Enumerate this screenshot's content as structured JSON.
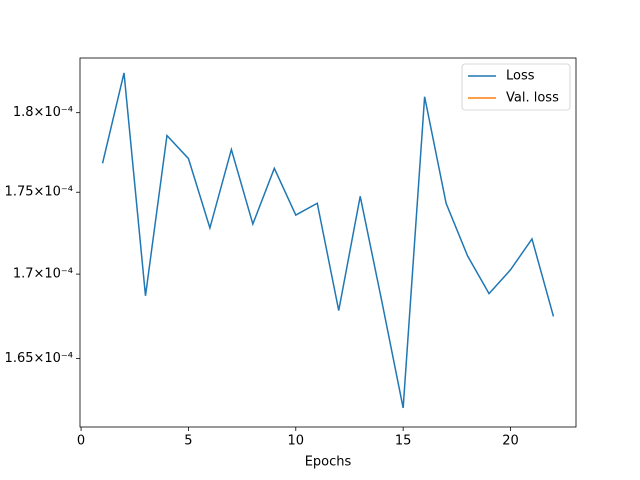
{
  "chart_data": {
    "type": "line",
    "xlabel": "Epochs",
    "x": [
      1,
      2,
      3,
      4,
      5,
      6,
      7,
      8,
      9,
      10,
      11,
      12,
      13,
      14,
      15,
      16,
      17,
      18,
      19,
      20,
      21,
      22
    ],
    "series": [
      {
        "name": "Loss",
        "color": "#1f77b4",
        "values": [
          0.0001768,
          0.00018255,
          0.0001687,
          0.00017855,
          0.0001771,
          0.0001728,
          0.00017767,
          0.00017304,
          0.00017649,
          0.00017359,
          0.00017432,
          0.00016782,
          0.00017475,
          0.00016841,
          0.00016213,
          0.00018102,
          0.00017432,
          0.0001711,
          0.00016883,
          0.00017026,
          0.00017213,
          0.00016747
        ]
      },
      {
        "name": "Val. loss",
        "color": "#ff7f0e",
        "values": [
          null,
          null,
          null,
          null,
          null,
          null,
          null,
          null,
          null,
          null,
          null,
          null,
          null,
          null,
          null,
          null,
          null,
          null,
          null,
          null,
          null,
          null
        ]
      }
    ],
    "xlim": [
      -0.05,
      23.05
    ],
    "xticks": [
      0,
      5,
      10,
      15,
      20
    ],
    "ylim": [
      0.00016104,
      0.00018352
    ],
    "ylog": true,
    "yticks": [
      {
        "value": 0.000165,
        "label": "1.65×10⁻⁴"
      },
      {
        "value": 0.00017,
        "label": "1.7×10⁻⁴"
      },
      {
        "value": 0.000175,
        "label": "1.75×10⁻⁴"
      },
      {
        "value": 0.00018,
        "label": "1.8×10⁻⁴"
      }
    ],
    "legend": "upper right"
  }
}
